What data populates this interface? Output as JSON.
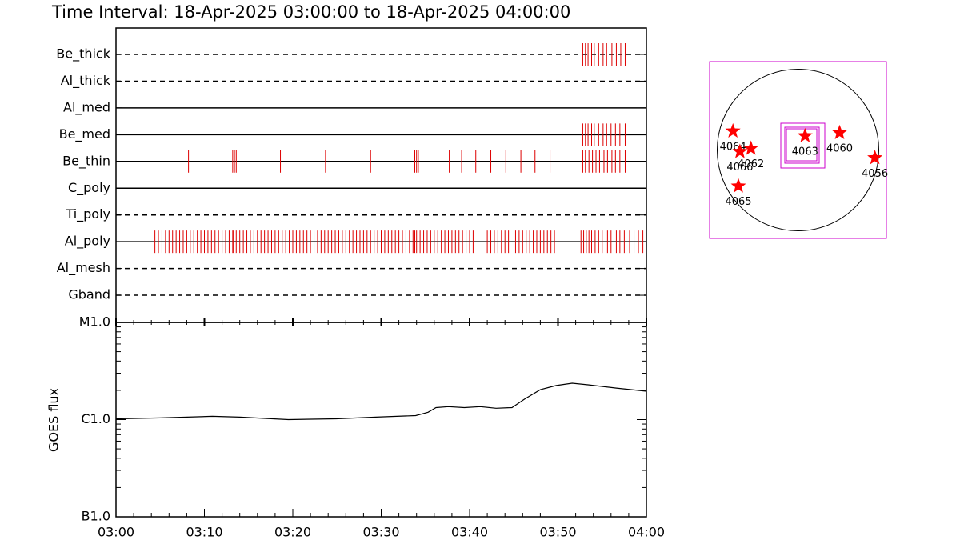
{
  "title": "Time Interval: 18-Apr-2025 03:00:00 to 18-Apr-2025 04:00:00",
  "chart_data": [
    {
      "type": "event",
      "color": "#dd0000",
      "xlim": [
        0,
        60
      ],
      "rows": [
        {
          "name": "Be_thick",
          "dashed": true,
          "times": [
            52.8,
            53.1,
            53.4,
            53.8,
            54.1,
            54.6,
            55.1,
            55.5,
            56.1,
            56.6,
            57.1,
            57.6
          ]
        },
        {
          "name": "Al_thick",
          "dashed": true,
          "times": []
        },
        {
          "name": "Al_med",
          "dashed": false,
          "times": []
        },
        {
          "name": "Be_med",
          "dashed": false,
          "times": [
            52.8,
            53.1,
            53.4,
            53.8,
            54.1,
            54.6,
            55.1,
            55.5,
            56.0,
            56.5,
            57.0,
            57.6
          ]
        },
        {
          "name": "Be_thin",
          "dashed": false,
          "times": [
            8.2,
            13.2,
            13.4,
            13.6,
            18.6,
            23.7,
            28.8,
            33.8,
            34.0,
            34.2,
            37.7,
            39.1,
            40.7,
            42.4,
            44.1,
            45.8,
            47.4,
            49.1,
            52.8,
            53.1,
            53.5,
            53.9,
            54.3,
            54.7,
            55.2,
            55.6,
            56.1,
            56.5,
            57.0,
            57.6
          ]
        },
        {
          "name": "C_poly",
          "dashed": false,
          "times": []
        },
        {
          "name": "Ti_poly",
          "dashed": true,
          "times": []
        },
        {
          "name": "Al_poly",
          "dashed": false,
          "times": [
            4.4,
            4.8,
            5.2,
            5.6,
            6.0,
            6.4,
            6.8,
            7.2,
            7.6,
            8.0,
            8.4,
            8.8,
            9.2,
            9.6,
            10.0,
            10.4,
            10.8,
            11.2,
            11.6,
            12.0,
            12.4,
            12.8,
            13.2,
            13.3,
            13.6,
            14.0,
            14.4,
            14.8,
            15.2,
            15.6,
            16.0,
            16.4,
            16.8,
            17.2,
            17.6,
            18.0,
            18.4,
            18.8,
            19.2,
            19.6,
            20.0,
            20.4,
            20.8,
            21.2,
            21.6,
            22.0,
            22.4,
            22.8,
            23.2,
            23.6,
            24.0,
            24.4,
            24.8,
            25.2,
            25.6,
            26.0,
            26.4,
            26.8,
            27.2,
            27.6,
            28.0,
            28.4,
            28.8,
            29.2,
            29.6,
            30.0,
            30.4,
            30.8,
            31.2,
            31.6,
            32.0,
            32.4,
            32.8,
            33.2,
            33.6,
            33.8,
            34.0,
            34.4,
            34.8,
            35.2,
            35.6,
            36.0,
            36.4,
            36.8,
            37.2,
            37.6,
            38.0,
            38.4,
            38.8,
            39.2,
            39.6,
            40.0,
            40.4,
            42.0,
            42.4,
            42.8,
            43.2,
            43.6,
            44.0,
            44.4,
            45.2,
            45.6,
            46.0,
            46.4,
            46.8,
            47.2,
            47.6,
            48.0,
            48.4,
            48.8,
            49.2,
            49.6,
            52.6,
            52.9,
            53.2,
            53.5,
            53.8,
            54.2,
            54.6,
            55.0,
            55.6,
            56.0,
            56.6,
            57.0,
            57.5,
            58.1,
            58.6,
            59.1,
            59.6
          ]
        },
        {
          "name": "Al_mesh",
          "dashed": true,
          "times": []
        },
        {
          "name": "Gband",
          "dashed": true,
          "times": []
        }
      ]
    },
    {
      "type": "line",
      "ylabel": "GOES flux",
      "color": "#000000",
      "ylog": true,
      "x": [
        0,
        5,
        10.9,
        14,
        19.5,
        24.9,
        29.4,
        33.9,
        35.3,
        36.2,
        37.6,
        39.4,
        41.2,
        43.0,
        44.8,
        46.2,
        48.0,
        49.8,
        51.6,
        53.4,
        56.6,
        60
      ],
      "values": [
        1.02e-06,
        1.04e-06,
        1.08e-06,
        1.06e-06,
        1e-06,
        1.02e-06,
        1.06e-06,
        1.1e-06,
        1.19e-06,
        1.33e-06,
        1.36e-06,
        1.33e-06,
        1.36e-06,
        1.31e-06,
        1.33e-06,
        1.62e-06,
        2.03e-06,
        2.24e-06,
        2.37e-06,
        2.28e-06,
        2.11e-06,
        1.96e-06
      ],
      "xlim": [
        0,
        60
      ],
      "xticks": [
        {
          "value": 0,
          "label": "03:00"
        },
        {
          "value": 10,
          "label": "03:10"
        },
        {
          "value": 20,
          "label": "03:20"
        },
        {
          "value": 30,
          "label": "03:30"
        },
        {
          "value": 40,
          "label": "03:40"
        },
        {
          "value": 50,
          "label": "03:50"
        },
        {
          "value": 60,
          "label": "04:00"
        }
      ],
      "xminorticks": [
        2,
        4,
        6,
        8,
        12,
        14,
        16,
        18,
        22,
        24,
        26,
        28,
        32,
        34,
        36,
        38,
        42,
        44,
        46,
        48,
        52,
        54,
        56,
        58
      ],
      "ylim": [
        1e-07,
        1e-05
      ],
      "yticks": [
        {
          "value": 1e-07,
          "label": "B1.0"
        },
        {
          "value": 1e-06,
          "label": "C1.0"
        },
        {
          "value": 1e-05,
          "label": "M1.0"
        }
      ],
      "yminorticks": [
        2e-07,
        3e-07,
        4e-07,
        5e-07,
        6e-07,
        7e-07,
        8e-07,
        9e-07,
        2e-06,
        3e-06,
        4e-06,
        5e-06,
        6e-06,
        7e-06,
        8e-06,
        9e-06
      ]
    },
    {
      "type": "map",
      "color": "#ff0000",
      "xlim": [
        -1050,
        1050
      ],
      "ylim": [
        -1050,
        1050
      ],
      "radius": 960,
      "regions": [
        {
          "name": "4064",
          "x": -773,
          "y": 224
        },
        {
          "name": "4066",
          "x": -690,
          "y": -19
        },
        {
          "name": "4062",
          "x": -559,
          "y": 19
        },
        {
          "name": "4063",
          "x": 84,
          "y": 168
        },
        {
          "name": "4060",
          "x": 494,
          "y": 205
        },
        {
          "name": "4056",
          "x": 913,
          "y": -93
        },
        {
          "name": "4065",
          "x": -708,
          "y": -429
        }
      ]
    }
  ]
}
